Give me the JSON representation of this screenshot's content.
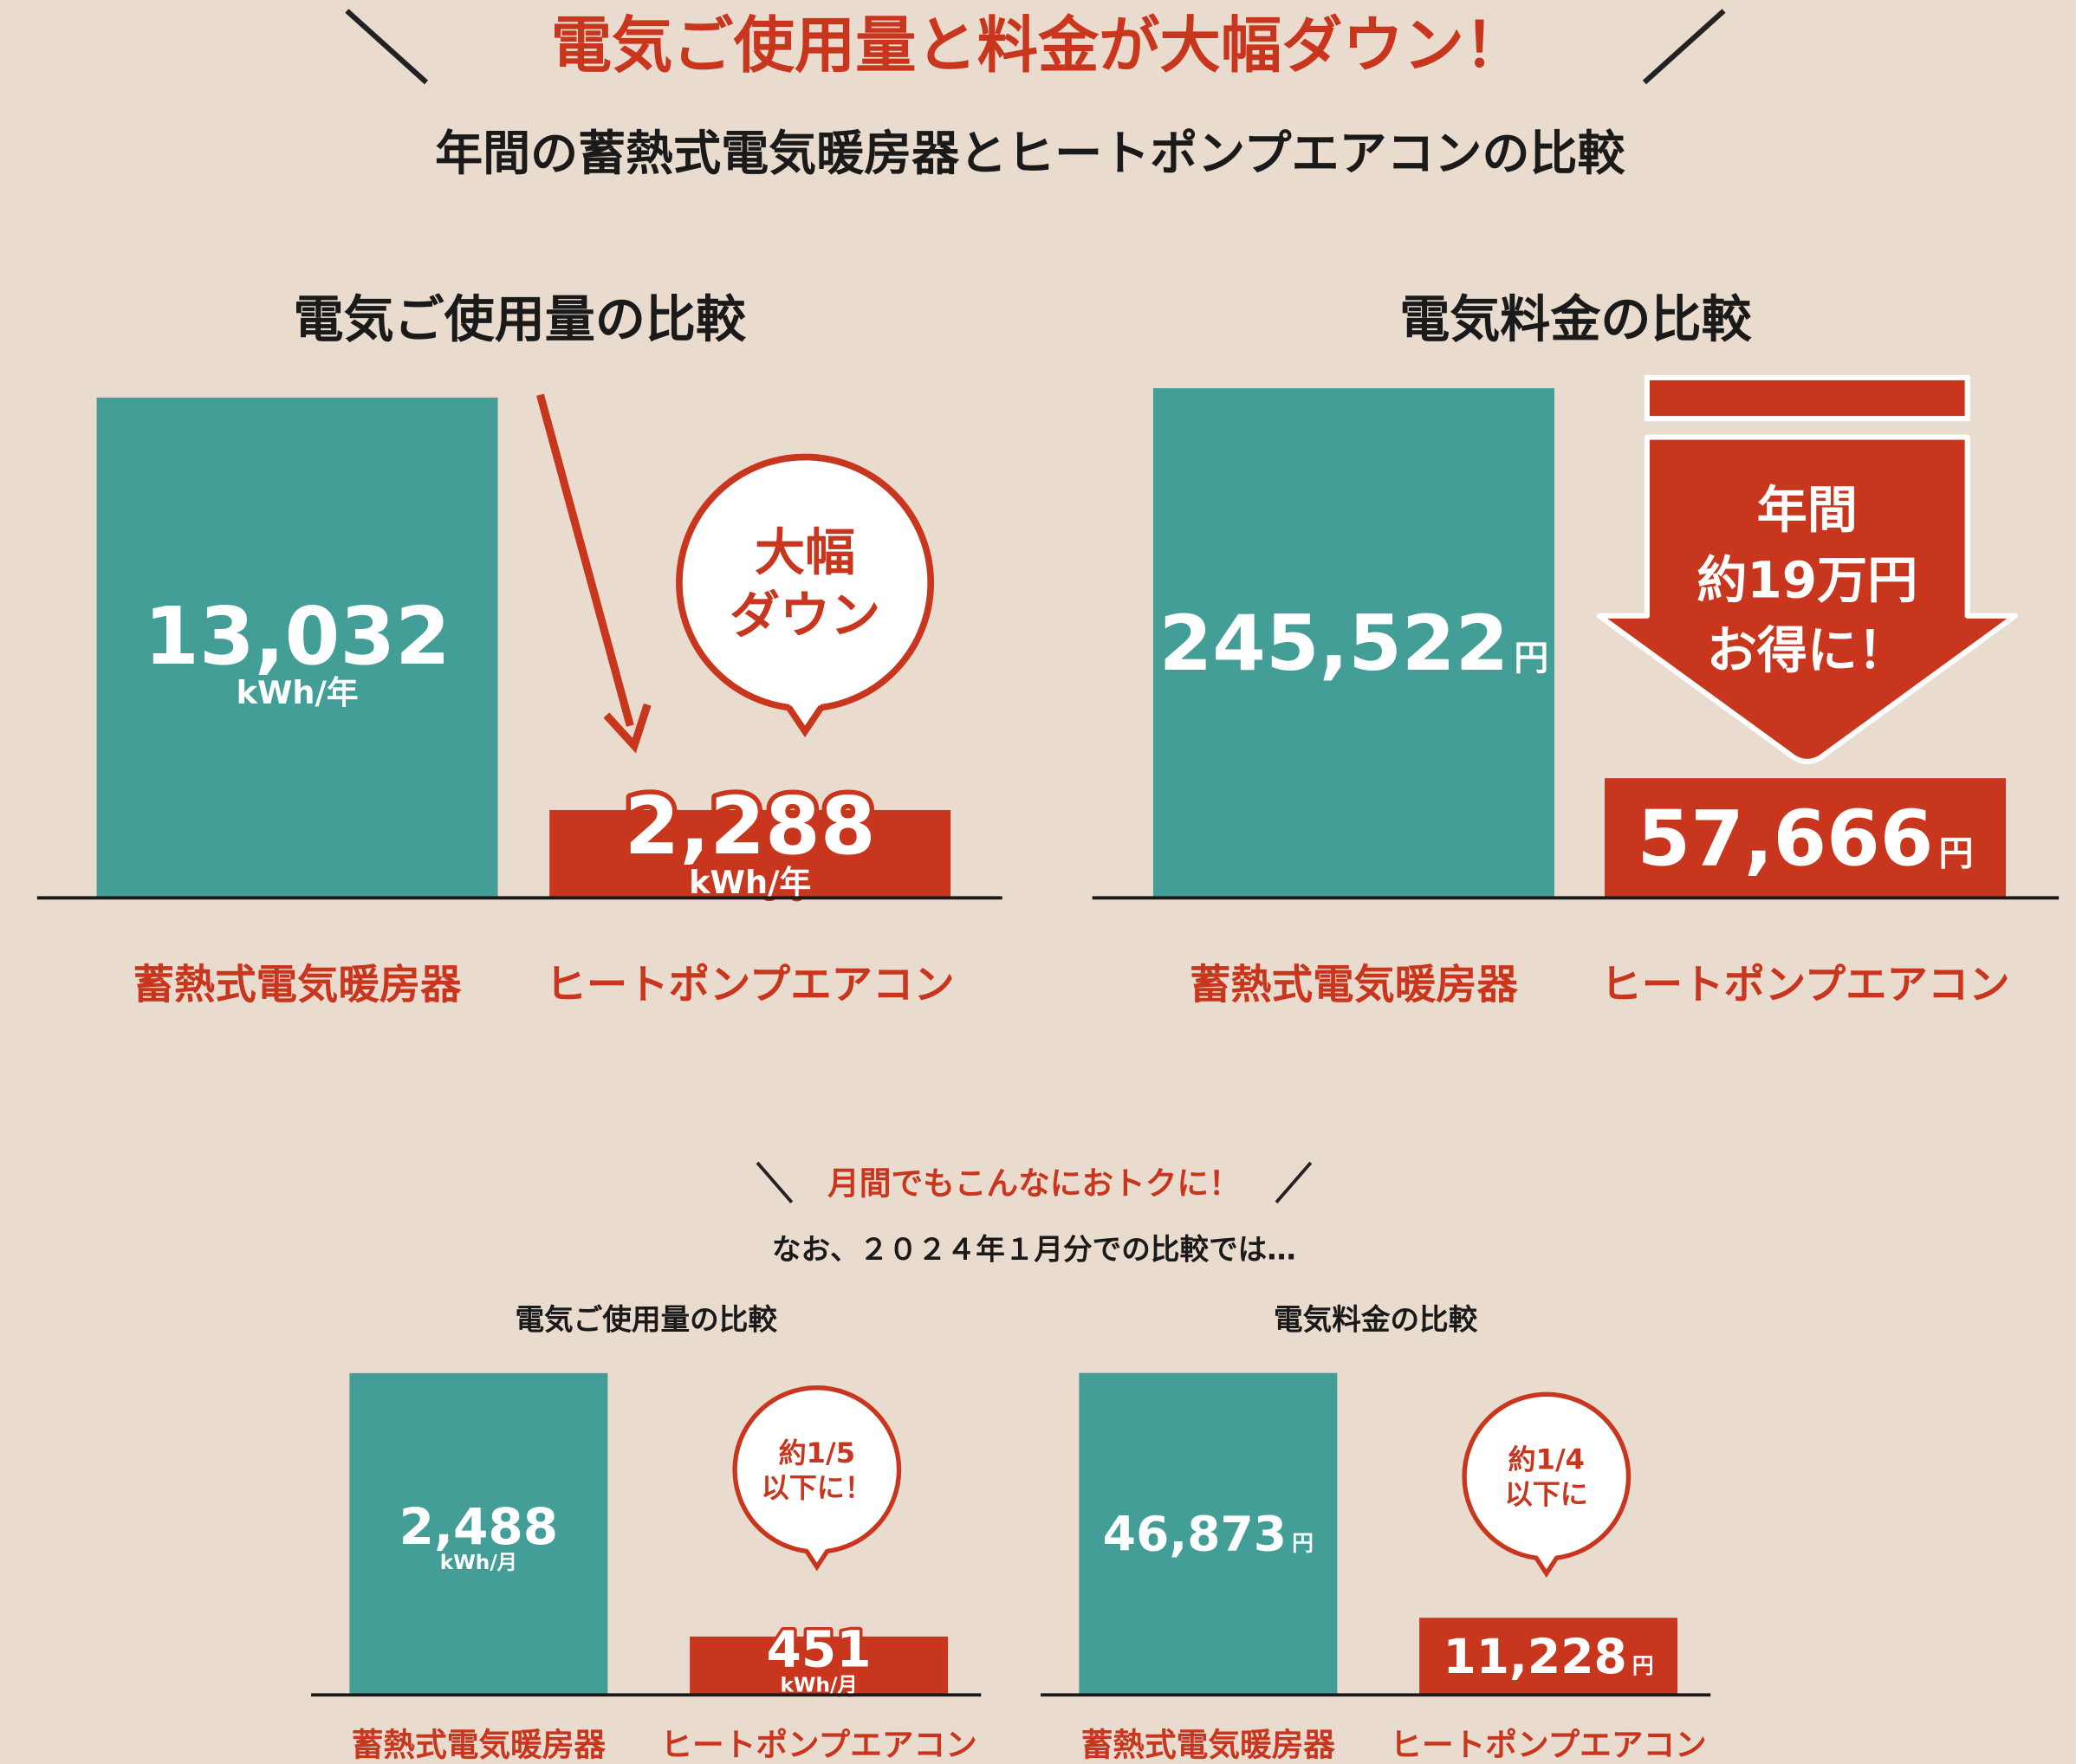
{
  "header": {
    "title": "電気ご使用量と料金が大幅ダウン！",
    "subtitle": "年間の蓄熱式電気暖房器とヒートポンプエアコンの比較"
  },
  "section2": {
    "heading": "月間でもこんなにおトクに！",
    "subheading": "なお、２０２４年１月分での比較では…"
  },
  "chart_data": [
    {
      "type": "bar",
      "title": "電気ご使用量の比較",
      "categories": [
        "蓄熱式電気暖房器",
        "ヒートポンプエアコン"
      ],
      "values": [
        13032,
        2288
      ],
      "value_labels": [
        "13,032",
        "2,288"
      ],
      "unit": "kWh/年",
      "unit_position": "below",
      "colors": [
        "#429e96",
        "#c8361e"
      ],
      "ylim": [
        0,
        14000
      ],
      "annotation": [
        "大幅",
        "ダウン"
      ],
      "annotation_style": "bubble"
    },
    {
      "type": "bar",
      "title": "電気料金の比較",
      "categories": [
        "蓄熱式電気暖房器",
        "ヒートポンプエアコン"
      ],
      "values": [
        245522,
        57666
      ],
      "value_labels": [
        "245,522",
        "57,666"
      ],
      "unit": "円",
      "unit_position": "right",
      "colors": [
        "#429e96",
        "#c8361e"
      ],
      "ylim": [
        0,
        250000
      ],
      "annotation": [
        "年間",
        "約19万円",
        "お得に！"
      ],
      "annotation_style": "arrow"
    },
    {
      "type": "bar",
      "title": "電気ご使用量の比較",
      "categories": [
        "蓄熱式電気暖房器",
        "ヒートポンプエアコン"
      ],
      "values": [
        2488,
        451
      ],
      "value_labels": [
        "2,488",
        "451"
      ],
      "unit": "kWh/月",
      "unit_position": "below",
      "colors": [
        "#429e96",
        "#c8361e"
      ],
      "ylim": [
        0,
        2600
      ],
      "annotation": [
        "約1/5",
        "以下に！"
      ],
      "annotation_style": "bubble"
    },
    {
      "type": "bar",
      "title": "電気料金の比較",
      "categories": [
        "蓄熱式電気暖房器",
        "ヒートポンプエアコン"
      ],
      "values": [
        46873,
        11228
      ],
      "value_labels": [
        "46,873",
        "11,228"
      ],
      "unit": "円",
      "unit_position": "right",
      "colors": [
        "#429e96",
        "#c8361e"
      ],
      "ylim": [
        0,
        48000
      ],
      "annotation": [
        "約1/4",
        "以下に"
      ],
      "annotation_style": "bubble"
    }
  ]
}
